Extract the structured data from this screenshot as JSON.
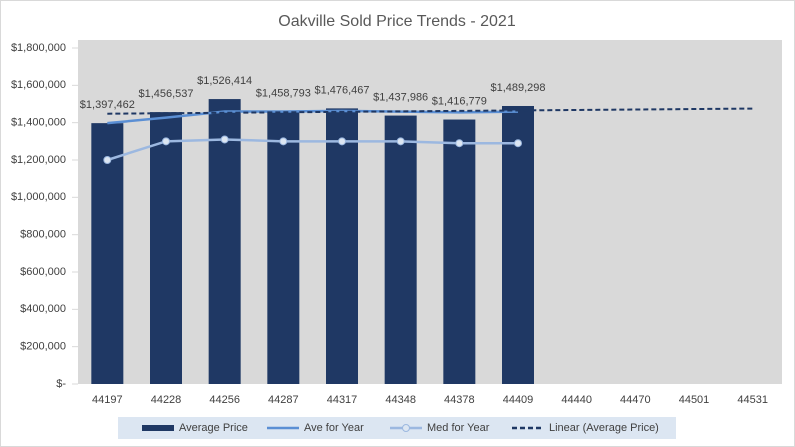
{
  "chart_data": {
    "type": "combo",
    "title": "Oakville Sold Price Trends - 2021",
    "categories": [
      "44197",
      "44228",
      "44256",
      "44287",
      "44317",
      "44348",
      "44378",
      "44409",
      "44440",
      "44470",
      "44501",
      "44531"
    ],
    "series": [
      {
        "name": "Average Price",
        "type": "bar",
        "color": "#1f3864",
        "values": [
          1397462,
          1456537,
          1526414,
          1458793,
          1476467,
          1437986,
          1416779,
          1489298,
          null,
          null,
          null,
          null
        ],
        "value_labels": [
          "$1,397,462",
          "$1,456,537",
          "$1,526,414",
          "$1,458,793",
          "$1,476,467",
          "$1,437,986",
          "$1,416,779",
          "$1,489,298",
          null,
          null,
          null,
          null
        ]
      },
      {
        "name": "Ave for Year",
        "type": "line",
        "color": "#5b8fd4",
        "values": [
          1397462,
          1427000,
          1460000,
          1460000,
          1463000,
          1459000,
          1455000,
          1459000,
          null,
          null,
          null,
          null
        ]
      },
      {
        "name": "Med for Year",
        "type": "line",
        "color": "#9cb8e0",
        "markers": true,
        "values": [
          1200000,
          1300000,
          1310000,
          1300000,
          1300000,
          1300000,
          1290000,
          1290000,
          null,
          null,
          null,
          null
        ]
      },
      {
        "name": "Linear (Average Price)",
        "type": "line",
        "color": "#1f3864",
        "dashed": true,
        "values": [
          1448000,
          1450500,
          1453000,
          1455500,
          1458000,
          1460500,
          1463000,
          1465500,
          1468000,
          1470500,
          1473000,
          1475500
        ]
      }
    ],
    "ylim": [
      0,
      1800000
    ],
    "yticks": [
      {
        "value": 0,
        "label": "$-"
      },
      {
        "value": 200000,
        "label": "$200,000"
      },
      {
        "value": 400000,
        "label": "$400,000"
      },
      {
        "value": 600000,
        "label": "$600,000"
      },
      {
        "value": 800000,
        "label": "$800,000"
      },
      {
        "value": 1000000,
        "label": "$1,000,000"
      },
      {
        "value": 1200000,
        "label": "$1,200,000"
      },
      {
        "value": 1400000,
        "label": "$1,400,000"
      },
      {
        "value": 1600000,
        "label": "$1,600,000"
      },
      {
        "value": 1800000,
        "label": "$1,800,000"
      }
    ],
    "legend": "bottom"
  }
}
